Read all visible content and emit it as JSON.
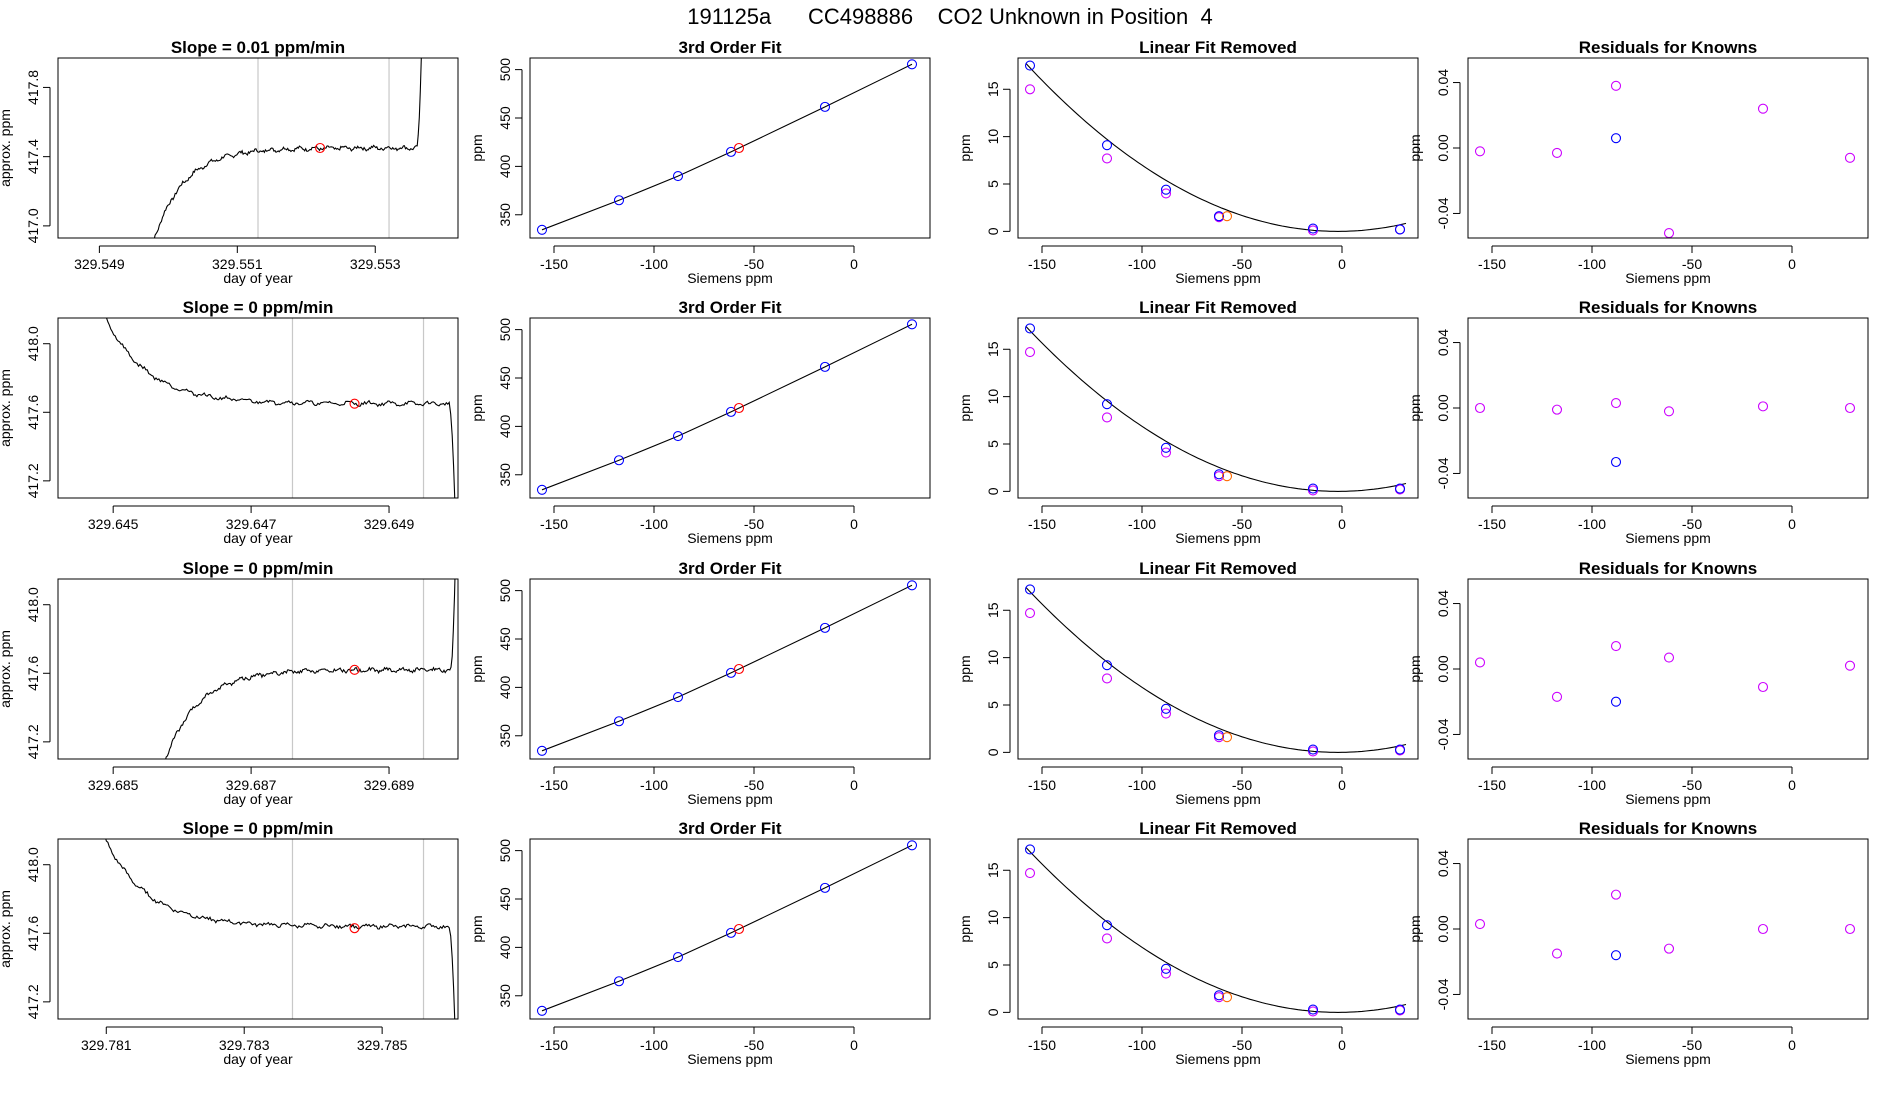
{
  "page_title": "191125a      CC498886    CO2 Unknown in Position  4",
  "colors": {
    "known": "#0000ff",
    "unknown": "#ff0000",
    "removed_unknown": "#ff6a00",
    "residual": "#cc00ff",
    "fit_line": "#000000",
    "guide": "#c8c8c8"
  },
  "chart_data": [
    {
      "type": "line",
      "row": 0,
      "panel": "trace",
      "title": "Slope =  0.01  ppm/min",
      "xlabel": "day of year",
      "ylabel": "approx. ppm",
      "xlim": [
        329.5484,
        329.5542
      ],
      "ylim": [
        416.93,
        417.97
      ],
      "xticks": [
        329.549,
        329.551,
        329.553
      ],
      "xtick_labels": [
        "329.549",
        "329.551",
        "329.553"
      ],
      "yticks": [
        417.0,
        417.4,
        417.8
      ],
      "ytick_labels": [
        "417.0",
        "417.4",
        "417.8"
      ],
      "vlines": [
        329.5513,
        329.5532
      ],
      "shape": "rise",
      "level": 417.45,
      "start": 416.8,
      "jump": 418.2,
      "curve_start": 329.5497,
      "curve_end": 329.5537,
      "marker": {
        "x": 329.5522,
        "y": 417.45
      }
    },
    {
      "type": "line",
      "row": 0,
      "panel": "fit",
      "title": "3rd Order Fit",
      "xlabel": "Siemens ppm",
      "ylabel": "ppm",
      "xlim": [
        -162,
        38
      ],
      "ylim": [
        326,
        512
      ],
      "xticks": [
        -150,
        -100,
        -50,
        0
      ],
      "xtick_labels": [
        "-150",
        "-100",
        "-50",
        "0"
      ],
      "yticks": [
        350,
        400,
        450,
        500
      ],
      "ytick_labels": [
        "350",
        "400",
        "450",
        "500"
      ],
      "knowns": [
        [
          -156,
          334.5
        ],
        [
          -117.5,
          365
        ],
        [
          -88,
          390
        ],
        [
          -61.5,
          415
        ],
        [
          -14.5,
          461.5
        ],
        [
          29,
          505.5
        ]
      ],
      "unknown": [
        -57.5,
        419
      ]
    },
    {
      "type": "scatter",
      "row": 0,
      "panel": "removed",
      "title": "Linear Fit Removed",
      "xlabel": "Siemens ppm",
      "ylabel": "ppm",
      "xlim": [
        -162,
        38
      ],
      "ylim": [
        -0.7,
        18.3
      ],
      "xticks": [
        -150,
        -100,
        -50,
        0
      ],
      "xtick_labels": [
        "-150",
        "-100",
        "-50",
        "0"
      ],
      "yticks": [
        0,
        5,
        10,
        15
      ],
      "ytick_labels": [
        "0",
        "5",
        "10",
        "15"
      ],
      "knowns": [
        [
          -156,
          17.5
        ],
        [
          -117.5,
          9.1
        ],
        [
          -88,
          4.4
        ],
        [
          -61.5,
          1.6
        ],
        [
          -14.5,
          0.3
        ],
        [
          29,
          0.2
        ]
      ],
      "pink": [
        [
          -156,
          15
        ],
        [
          -117.5,
          7.7
        ],
        [
          -88,
          4.0
        ],
        [
          -61.5,
          1.5
        ],
        [
          -14.5,
          0.1
        ],
        [
          29,
          0.2
        ]
      ],
      "unknown": [
        -57.5,
        1.6
      ],
      "curve_vertex": [
        -2,
        0
      ],
      "curve_a": 0.000728
    },
    {
      "type": "scatter",
      "row": 0,
      "panel": "residuals",
      "title": "Residuals for Knowns",
      "xlabel": "Siemens ppm",
      "ylabel": "ppm",
      "xlim": [
        -162,
        38
      ],
      "ylim": [
        -0.055,
        0.055
      ],
      "xticks": [
        -150,
        -100,
        -50,
        0
      ],
      "xtick_labels": [
        "-150",
        "-100",
        "-50",
        "0"
      ],
      "yticks": [
        -0.04,
        0.0,
        0.04
      ],
      "ytick_labels": [
        "-0.04",
        "0.00",
        "0.04"
      ],
      "pink": [
        [
          -156,
          -0.002
        ],
        [
          -117.5,
          -0.003
        ],
        [
          -88,
          0.038
        ],
        [
          -61.5,
          -0.052
        ],
        [
          -14.5,
          0.024
        ],
        [
          29,
          -0.006
        ]
      ],
      "blue": [
        [
          -88,
          0.006
        ]
      ]
    },
    {
      "type": "line",
      "row": 1,
      "panel": "trace",
      "title": "Slope =  0  ppm/min",
      "xlabel": "day of year",
      "ylabel": "approx. ppm",
      "xlim": [
        329.6442,
        329.65
      ],
      "ylim": [
        417.1,
        418.15
      ],
      "xticks": [
        329.645,
        329.647,
        329.649
      ],
      "xtick_labels": [
        "329.645",
        "329.647",
        "329.649"
      ],
      "yticks": [
        417.2,
        417.6,
        418.0
      ],
      "ytick_labels": [
        "417.2",
        "417.6",
        "418.0"
      ],
      "vlines": [
        329.6476,
        329.6495
      ],
      "shape": "fall",
      "level": 417.65,
      "start": 418.6,
      "jump": 416.8,
      "curve_start": 329.6445,
      "curve_end": 329.65,
      "marker": {
        "x": 329.6485,
        "y": 417.65
      }
    },
    {
      "type": "line",
      "row": 1,
      "panel": "fit",
      "title": "3rd Order Fit",
      "xlabel": "Siemens ppm",
      "ylabel": "ppm",
      "xlim": [
        -162,
        38
      ],
      "ylim": [
        326,
        512
      ],
      "xticks": [
        -150,
        -100,
        -50,
        0
      ],
      "xtick_labels": [
        "-150",
        "-100",
        "-50",
        "0"
      ],
      "yticks": [
        350,
        400,
        450,
        500
      ],
      "ytick_labels": [
        "350",
        "400",
        "450",
        "500"
      ],
      "knowns": [
        [
          -156,
          334.5
        ],
        [
          -117.5,
          365
        ],
        [
          -88,
          390
        ],
        [
          -61.5,
          415
        ],
        [
          -14.5,
          461.5
        ],
        [
          29,
          505.5
        ]
      ],
      "unknown": [
        -57.5,
        419
      ]
    },
    {
      "type": "scatter",
      "row": 1,
      "panel": "removed",
      "title": "Linear Fit Removed",
      "xlabel": "Siemens ppm",
      "ylabel": "ppm",
      "xlim": [
        -162,
        38
      ],
      "ylim": [
        -0.7,
        18.3
      ],
      "xticks": [
        -150,
        -100,
        -50,
        0
      ],
      "xtick_labels": [
        "-150",
        "-100",
        "-50",
        "0"
      ],
      "yticks": [
        0,
        5,
        10,
        15
      ],
      "ytick_labels": [
        "0",
        "5",
        "10",
        "15"
      ],
      "knowns": [
        [
          -156,
          17.2
        ],
        [
          -117.5,
          9.2
        ],
        [
          -88,
          4.6
        ],
        [
          -61.5,
          1.8
        ],
        [
          -14.5,
          0.3
        ],
        [
          29,
          0.3
        ]
      ],
      "pink": [
        [
          -156,
          14.7
        ],
        [
          -117.5,
          7.8
        ],
        [
          -88,
          4.1
        ],
        [
          -61.5,
          1.6
        ],
        [
          -14.5,
          0.1
        ],
        [
          29,
          0.2
        ]
      ],
      "unknown": [
        -57.5,
        1.6
      ],
      "curve_vertex": [
        -2,
        0
      ],
      "curve_a": 0.000715
    },
    {
      "type": "scatter",
      "row": 1,
      "panel": "residuals",
      "title": "Residuals for Knowns",
      "xlabel": "Siemens ppm",
      "ylabel": "ppm",
      "xlim": [
        -162,
        38
      ],
      "ylim": [
        -0.055,
        0.055
      ],
      "xticks": [
        -150,
        -100,
        -50,
        0
      ],
      "xtick_labels": [
        "-150",
        "-100",
        "-50",
        "0"
      ],
      "yticks": [
        -0.04,
        0.0,
        0.04
      ],
      "ytick_labels": [
        "-0.04",
        "0.00",
        "0.04"
      ],
      "pink": [
        [
          -156,
          0.0
        ],
        [
          -117.5,
          -0.001
        ],
        [
          -88,
          0.003
        ],
        [
          -61.5,
          -0.002
        ],
        [
          -14.5,
          0.001
        ],
        [
          29,
          0.0
        ]
      ],
      "blue": [
        [
          -88,
          -0.033
        ]
      ]
    },
    {
      "type": "line",
      "row": 2,
      "panel": "trace",
      "title": "Slope =  0  ppm/min",
      "xlabel": "day of year",
      "ylabel": "approx. ppm",
      "xlim": [
        329.6842,
        329.69
      ],
      "ylim": [
        417.1,
        418.15
      ],
      "xticks": [
        329.685,
        329.687,
        329.689
      ],
      "xtick_labels": [
        "329.685",
        "329.687",
        "329.689"
      ],
      "yticks": [
        417.2,
        417.6,
        418.0
      ],
      "ytick_labels": [
        "417.2",
        "417.6",
        "418.0"
      ],
      "vlines": [
        329.6876,
        329.6895
      ],
      "shape": "rise",
      "level": 417.62,
      "start": 416.9,
      "jump": 418.6,
      "curve_start": 329.6856,
      "curve_end": 329.69,
      "marker": {
        "x": 329.6885,
        "y": 417.62
      }
    },
    {
      "type": "line",
      "row": 2,
      "panel": "fit",
      "title": "3rd Order Fit",
      "xlabel": "Siemens ppm",
      "ylabel": "ppm",
      "xlim": [
        -162,
        38
      ],
      "ylim": [
        326,
        512
      ],
      "xticks": [
        -150,
        -100,
        -50,
        0
      ],
      "xtick_labels": [
        "-150",
        "-100",
        "-50",
        "0"
      ],
      "yticks": [
        350,
        400,
        450,
        500
      ],
      "ytick_labels": [
        "350",
        "400",
        "450",
        "500"
      ],
      "knowns": [
        [
          -156,
          334.5
        ],
        [
          -117.5,
          365
        ],
        [
          -88,
          390
        ],
        [
          -61.5,
          415
        ],
        [
          -14.5,
          461.5
        ],
        [
          29,
          505.5
        ]
      ],
      "unknown": [
        -57.5,
        419
      ]
    },
    {
      "type": "scatter",
      "row": 2,
      "panel": "removed",
      "title": "Linear Fit Removed",
      "xlabel": "Siemens ppm",
      "ylabel": "ppm",
      "xlim": [
        -162,
        38
      ],
      "ylim": [
        -0.7,
        18.3
      ],
      "xticks": [
        -150,
        -100,
        -50,
        0
      ],
      "xtick_labels": [
        "-150",
        "-100",
        "-50",
        "0"
      ],
      "yticks": [
        0,
        5,
        10,
        15
      ],
      "ytick_labels": [
        "0",
        "5",
        "10",
        "15"
      ],
      "knowns": [
        [
          -156,
          17.2
        ],
        [
          -117.5,
          9.2
        ],
        [
          -88,
          4.6
        ],
        [
          -61.5,
          1.8
        ],
        [
          -14.5,
          0.3
        ],
        [
          29,
          0.3
        ]
      ],
      "pink": [
        [
          -156,
          14.7
        ],
        [
          -117.5,
          7.8
        ],
        [
          -88,
          4.1
        ],
        [
          -61.5,
          1.6
        ],
        [
          -14.5,
          0.1
        ],
        [
          29,
          0.2
        ]
      ],
      "unknown": [
        -57.5,
        1.6
      ],
      "curve_vertex": [
        -2,
        0
      ],
      "curve_a": 0.000715
    },
    {
      "type": "scatter",
      "row": 2,
      "panel": "residuals",
      "title": "Residuals for Knowns",
      "xlabel": "Siemens ppm",
      "ylabel": "ppm",
      "xlim": [
        -162,
        38
      ],
      "ylim": [
        -0.055,
        0.055
      ],
      "xticks": [
        -150,
        -100,
        -50,
        0
      ],
      "xtick_labels": [
        "-150",
        "-100",
        "-50",
        "0"
      ],
      "yticks": [
        -0.04,
        0.0,
        0.04
      ],
      "ytick_labels": [
        "-0.04",
        "0.00",
        "0.04"
      ],
      "pink": [
        [
          -156,
          0.004
        ],
        [
          -117.5,
          -0.017
        ],
        [
          -88,
          0.014
        ],
        [
          -61.5,
          0.007
        ],
        [
          -14.5,
          -0.011
        ],
        [
          29,
          0.002
        ]
      ],
      "blue": [
        [
          -88,
          -0.02
        ]
      ]
    },
    {
      "type": "line",
      "row": 3,
      "panel": "trace",
      "title": "Slope =  0  ppm/min",
      "xlabel": "day of year",
      "ylabel": "approx. ppm",
      "xlim": [
        329.7803,
        329.7861
      ],
      "ylim": [
        417.1,
        418.15
      ],
      "xticks": [
        329.781,
        329.783,
        329.785
      ],
      "xtick_labels": [
        "329.781",
        "329.783",
        "329.785"
      ],
      "yticks": [
        417.2,
        417.6,
        418.0
      ],
      "ytick_labels": [
        "417.2",
        "417.6",
        "418.0"
      ],
      "vlines": [
        329.7837,
        329.7856
      ],
      "shape": "fall",
      "level": 417.64,
      "start": 418.6,
      "jump": 416.8,
      "curve_start": 329.7806,
      "curve_end": 329.7861,
      "marker": {
        "x": 329.7846,
        "y": 417.63
      }
    },
    {
      "type": "line",
      "row": 3,
      "panel": "fit",
      "title": "3rd Order Fit",
      "xlabel": "Siemens ppm",
      "ylabel": "ppm",
      "xlim": [
        -162,
        38
      ],
      "ylim": [
        326,
        512
      ],
      "xticks": [
        -150,
        -100,
        -50,
        0
      ],
      "xtick_labels": [
        "-150",
        "-100",
        "-50",
        "0"
      ],
      "yticks": [
        350,
        400,
        450,
        500
      ],
      "ytick_labels": [
        "350",
        "400",
        "450",
        "500"
      ],
      "knowns": [
        [
          -156,
          334.5
        ],
        [
          -117.5,
          365
        ],
        [
          -88,
          390
        ],
        [
          -61.5,
          415
        ],
        [
          -14.5,
          461.5
        ],
        [
          29,
          505.5
        ]
      ],
      "unknown": [
        -57.5,
        419
      ]
    },
    {
      "type": "scatter",
      "row": 3,
      "panel": "removed",
      "title": "Linear Fit Removed",
      "xlabel": "Siemens ppm",
      "ylabel": "ppm",
      "xlim": [
        -162,
        38
      ],
      "ylim": [
        -0.7,
        18.3
      ],
      "xticks": [
        -150,
        -100,
        -50,
        0
      ],
      "xtick_labels": [
        "-150",
        "-100",
        "-50",
        "0"
      ],
      "yticks": [
        0,
        5,
        10,
        15
      ],
      "ytick_labels": [
        "0",
        "5",
        "10",
        "15"
      ],
      "knowns": [
        [
          -156,
          17.2
        ],
        [
          -117.5,
          9.2
        ],
        [
          -88,
          4.6
        ],
        [
          -61.5,
          1.8
        ],
        [
          -14.5,
          0.3
        ],
        [
          29,
          0.3
        ]
      ],
      "pink": [
        [
          -156,
          14.7
        ],
        [
          -117.5,
          7.8
        ],
        [
          -88,
          4.1
        ],
        [
          -61.5,
          1.6
        ],
        [
          -14.5,
          0.1
        ],
        [
          29,
          0.2
        ]
      ],
      "unknown": [
        -57.5,
        1.6
      ],
      "curve_vertex": [
        -2,
        0
      ],
      "curve_a": 0.000715
    },
    {
      "type": "scatter",
      "row": 3,
      "panel": "residuals",
      "title": "Residuals for Knowns",
      "xlabel": "Siemens ppm",
      "ylabel": "ppm",
      "xlim": [
        -162,
        38
      ],
      "ylim": [
        -0.055,
        0.055
      ],
      "xticks": [
        -150,
        -100,
        -50,
        0
      ],
      "xtick_labels": [
        "-150",
        "-100",
        "-50",
        "0"
      ],
      "yticks": [
        -0.04,
        0.0,
        0.04
      ],
      "ytick_labels": [
        "-0.04",
        "0.00",
        "0.04"
      ],
      "pink": [
        [
          -156,
          0.003
        ],
        [
          -117.5,
          -0.015
        ],
        [
          -88,
          0.021
        ],
        [
          -61.5,
          -0.012
        ],
        [
          -14.5,
          0.0
        ],
        [
          29,
          0.0
        ]
      ],
      "blue": [
        [
          -88,
          -0.016
        ]
      ]
    }
  ]
}
